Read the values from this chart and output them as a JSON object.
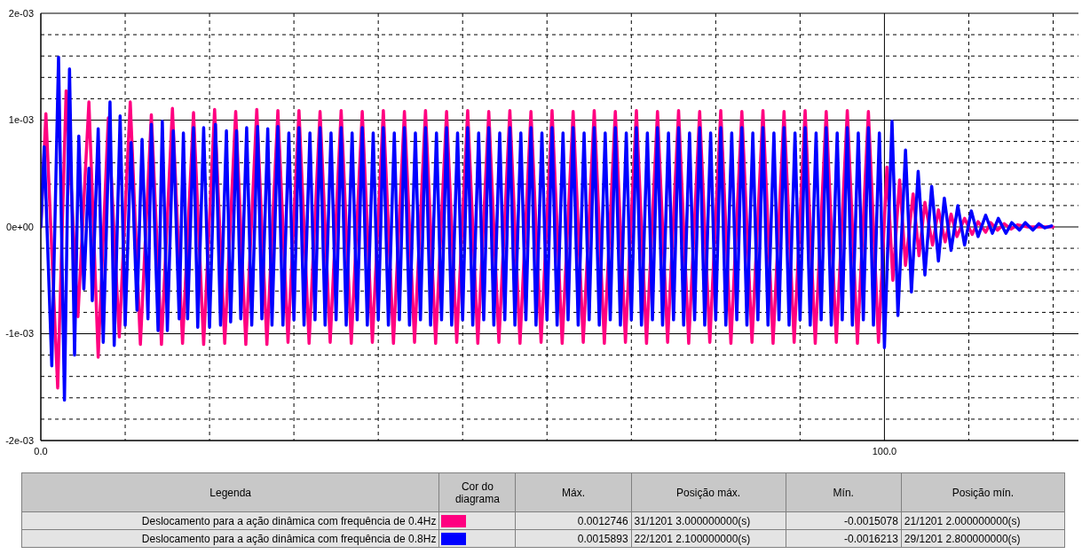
{
  "chart_data": {
    "type": "line",
    "xlim": [
      0,
      123
    ],
    "xticks": [
      {
        "value": 0,
        "label": "0.0"
      },
      {
        "value": 10,
        "label": null
      },
      {
        "value": 20,
        "label": null
      },
      {
        "value": 30,
        "label": null
      },
      {
        "value": 40,
        "label": null
      },
      {
        "value": 50,
        "label": null
      },
      {
        "value": 60,
        "label": null
      },
      {
        "value": 70,
        "label": null
      },
      {
        "value": 80,
        "label": null
      },
      {
        "value": 90,
        "label": null
      },
      {
        "value": 100,
        "label": "100.0"
      },
      {
        "value": 110,
        "label": null
      },
      {
        "value": 120,
        "label": null
      }
    ],
    "ylim": [
      -0.002,
      0.002
    ],
    "yticks": [
      {
        "value": -0.002,
        "label": "-2e-03"
      },
      {
        "value": -0.0018,
        "label": null
      },
      {
        "value": -0.0016,
        "label": null
      },
      {
        "value": -0.0014,
        "label": null
      },
      {
        "value": -0.0012,
        "label": null
      },
      {
        "value": -0.001,
        "label": "-1e-03"
      },
      {
        "value": -0.0008,
        "label": null
      },
      {
        "value": -0.0006,
        "label": null
      },
      {
        "value": -0.0004,
        "label": null
      },
      {
        "value": -0.0002,
        "label": null
      },
      {
        "value": 0,
        "label": "0e+00"
      },
      {
        "value": 0.0002,
        "label": null
      },
      {
        "value": 0.0004,
        "label": null
      },
      {
        "value": 0.0006,
        "label": null
      },
      {
        "value": 0.0008,
        "label": null
      },
      {
        "value": 0.001,
        "label": "1e-03"
      },
      {
        "value": 0.0012,
        "label": null
      },
      {
        "value": 0.0014,
        "label": null
      },
      {
        "value": 0.0016,
        "label": null
      },
      {
        "value": 0.0018,
        "label": null
      },
      {
        "value": 0.002,
        "label": "2e-03"
      }
    ],
    "grid": true,
    "legend": "bottom",
    "line_style": "solid",
    "annotations": [
      "Legenda",
      "Cor do diagrama",
      "Máx.",
      "Posição máx.",
      "Mín.",
      "Posição mín.",
      "0.0012746",
      "31/1201 3.000000000(s)",
      "-0.0015078",
      "21/1201 2.000000000(s)",
      "0.0015893",
      "22/1201 2.100000000(s)",
      "-0.0016213",
      "29/1201 2.800000000(s)"
    ],
    "series": [
      {
        "name": "Deslocamento para a ação dinâmica com frequência de 0.4Hz",
        "color": "#ff0080",
        "x": [
          0,
          0.6,
          2.0,
          3.0,
          4.4,
          5.7,
          6.8,
          8.0,
          9.3,
          10.6,
          11.8,
          13.1,
          14.3,
          15.6,
          16.8,
          18.1,
          19.3,
          20.6,
          21.8,
          23.1,
          24.3,
          25.6,
          26.8,
          28.1,
          29.3,
          30.6,
          31.8,
          33.1,
          34.3,
          35.6,
          36.8,
          38.1,
          39.3,
          40.6,
          41.8,
          43.1,
          44.3,
          45.6,
          46.8,
          48.1,
          49.3,
          50.6,
          51.8,
          53.1,
          54.3,
          55.6,
          56.8,
          58.1,
          59.3,
          60.6,
          61.8,
          63.1,
          64.3,
          65.6,
          66.8,
          68.1,
          69.3,
          70.6,
          71.8,
          73.1,
          74.3,
          75.6,
          76.8,
          78.1,
          79.3,
          80.6,
          81.8,
          83.1,
          84.3,
          85.6,
          86.8,
          88.1,
          89.3,
          90.6,
          91.8,
          93.1,
          94.3,
          95.6,
          96.8,
          98.1,
          99.3,
          100.3,
          101.0,
          101.8,
          102.5,
          103.4,
          104.1,
          104.8,
          105.7,
          106.4,
          107.2,
          107.9,
          108.6,
          109.5,
          110.4,
          111.1,
          112.0,
          112.6,
          113.4,
          114.2,
          115.0,
          115.8,
          117.0,
          120.0
        ],
        "values": [
          0,
          0.00106,
          -0.0015078,
          0.0012746,
          -0.00084,
          0.00117,
          -0.00122,
          0.00102,
          -0.00103,
          0.00117,
          -0.0011,
          0.00105,
          -0.0011,
          0.00111,
          -0.00109,
          0.00107,
          -0.0011,
          0.0011,
          -0.00109,
          0.00108,
          -0.0011,
          0.0011,
          -0.0011,
          0.00109,
          -0.00108,
          0.00109,
          -0.00109,
          0.00108,
          -0.00108,
          0.00109,
          -0.00109,
          0.00108,
          -0.00108,
          0.00109,
          -0.00109,
          0.00108,
          -0.00108,
          0.00109,
          -0.00109,
          0.00108,
          -0.00108,
          0.00109,
          -0.00109,
          0.00108,
          -0.00108,
          0.00109,
          -0.00109,
          0.00108,
          -0.00108,
          0.00109,
          -0.00109,
          0.00108,
          -0.00108,
          0.00109,
          -0.00109,
          0.00108,
          -0.00108,
          0.00109,
          -0.00109,
          0.00108,
          -0.00108,
          0.00109,
          -0.00109,
          0.00108,
          -0.00108,
          0.00109,
          -0.00109,
          0.00108,
          -0.00108,
          0.00109,
          -0.00109,
          0.00108,
          -0.00108,
          0.00109,
          -0.00109,
          0.00108,
          -0.00108,
          0.00109,
          -0.00109,
          0.00108,
          -0.00108,
          0.00056,
          -0.0005,
          0.00044,
          -0.00036,
          0.00031,
          -0.00027,
          0.00023,
          -0.00017,
          0.00016,
          -0.00014,
          0.00012,
          -9e-05,
          8e-05,
          -7e-05,
          5e-05,
          -5e-05,
          4e-05,
          -3e-05,
          3e-05,
          -2e-05,
          2e-05,
          0,
          0
        ]
      },
      {
        "name": "Deslocamento para a ação dinâmica com frequência de 0.8Hz",
        "color": "#0000ff",
        "x": [
          0,
          0.4,
          1.3,
          2.1,
          2.8,
          3.4,
          4.0,
          4.5,
          5.1,
          5.7,
          6.1,
          6.8,
          7.4,
          8.2,
          8.7,
          9.4,
          10.0,
          10.7,
          11.4,
          12.0,
          12.7,
          13.1,
          13.9,
          14.4,
          15.0,
          15.7,
          16.4,
          16.9,
          17.4,
          18.1,
          18.6,
          19.3,
          20.0,
          20.7,
          21.3,
          22.0,
          22.5,
          23.2,
          23.7,
          24.4,
          25.0,
          25.7,
          26.2,
          26.9,
          27.4,
          28.1,
          28.7,
          29.4,
          30.0,
          30.6,
          31.2,
          31.9,
          32.5,
          33.1,
          33.7,
          34.4,
          35.0,
          35.6,
          36.2,
          36.9,
          37.5,
          38.1,
          38.7,
          39.4,
          40.0,
          40.6,
          41.2,
          41.9,
          42.5,
          43.1,
          43.7,
          44.4,
          45.0,
          45.6,
          46.2,
          46.9,
          47.5,
          48.1,
          48.7,
          49.4,
          50.0,
          50.6,
          51.2,
          51.9,
          52.5,
          53.1,
          53.7,
          54.4,
          55.0,
          55.6,
          56.2,
          56.9,
          57.5,
          58.1,
          58.7,
          59.4,
          60.0,
          60.6,
          61.2,
          61.9,
          62.5,
          63.1,
          63.7,
          64.4,
          65.0,
          65.6,
          66.2,
          66.9,
          67.5,
          68.1,
          68.7,
          69.4,
          70.0,
          70.6,
          71.2,
          71.9,
          72.5,
          73.1,
          73.7,
          74.4,
          75.0,
          75.6,
          76.2,
          76.9,
          77.5,
          78.1,
          78.7,
          79.4,
          80.0,
          80.6,
          81.2,
          81.9,
          82.5,
          83.1,
          83.7,
          84.4,
          85.0,
          85.6,
          86.2,
          86.9,
          87.5,
          88.1,
          88.7,
          89.4,
          90.0,
          90.6,
          91.2,
          91.9,
          92.5,
          93.1,
          93.7,
          94.4,
          95.0,
          95.6,
          96.2,
          96.9,
          97.5,
          98.1,
          98.7,
          99.4,
          100.0,
          100.9,
          101.6,
          102.5,
          103.2,
          104.0,
          104.8,
          105.6,
          106.4,
          107.1,
          107.9,
          108.7,
          109.5,
          110.3,
          111.1,
          112.0,
          112.8,
          113.5,
          114.4,
          115.1,
          116.0,
          116.7,
          117.6,
          118.3,
          119.0,
          119.8
        ],
        "values": [
          0,
          0.00075,
          -0.0013,
          0.0015893,
          -0.0016213,
          0.00148,
          -0.0012,
          0.00085,
          -0.00058,
          0.00055,
          -0.00069,
          0.00092,
          -0.00108,
          0.00117,
          -0.00111,
          0.00104,
          -0.00092,
          0.00079,
          -0.00078,
          0.00082,
          -0.00086,
          0.00096,
          -0.00097,
          0.00099,
          -0.00097,
          0.0009,
          -0.00086,
          0.00088,
          -0.00086,
          0.00093,
          -0.00094,
          0.00093,
          -0.00094,
          0.00096,
          -0.00092,
          0.0009,
          -0.00089,
          0.0009,
          -0.00086,
          0.00093,
          -0.00092,
          0.00094,
          -0.00086,
          0.00092,
          -0.00092,
          0.00094,
          -0.00092,
          0.00088,
          -0.00087,
          0.00093,
          -0.00092,
          0.00088,
          -0.00087,
          0.00093,
          -0.00092,
          0.00088,
          -0.00087,
          0.00093,
          -0.00092,
          0.00088,
          -0.00087,
          0.00093,
          -0.00092,
          0.00088,
          -0.00087,
          0.00093,
          -0.00092,
          0.00088,
          -0.00087,
          0.00093,
          -0.00092,
          0.00088,
          -0.00087,
          0.00093,
          -0.00092,
          0.00088,
          -0.00087,
          0.00093,
          -0.00092,
          0.00088,
          -0.00087,
          0.00093,
          -0.00092,
          0.00088,
          -0.00087,
          0.00093,
          -0.00092,
          0.00088,
          -0.00087,
          0.00093,
          -0.00092,
          0.00088,
          -0.00087,
          0.00093,
          -0.00092,
          0.00088,
          -0.00087,
          0.00093,
          -0.00092,
          0.00088,
          -0.00087,
          0.00093,
          -0.00092,
          0.00088,
          -0.00087,
          0.00093,
          -0.00092,
          0.00088,
          -0.00087,
          0.00093,
          -0.00092,
          0.00088,
          -0.00087,
          0.00093,
          -0.00092,
          0.00088,
          -0.00087,
          0.00093,
          -0.00092,
          0.00088,
          -0.00087,
          0.00093,
          -0.00092,
          0.00088,
          -0.00087,
          0.00093,
          -0.00092,
          0.00088,
          -0.00087,
          0.00093,
          -0.00092,
          0.00088,
          -0.00087,
          0.00093,
          -0.00092,
          0.00088,
          -0.00087,
          0.00093,
          -0.00092,
          0.00088,
          -0.00087,
          0.00093,
          -0.00092,
          0.00088,
          -0.00087,
          0.00093,
          -0.00092,
          0.00088,
          -0.00087,
          0.00093,
          -0.00092,
          0.00088,
          -0.00087,
          0.00093,
          -0.00092,
          0.00088,
          -0.00087,
          0.00093,
          -0.00092,
          0.00088,
          -0.00113,
          0.00099,
          -0.00083,
          0.00072,
          -0.00061,
          0.00052,
          -0.00045,
          0.00038,
          -0.00032,
          0.00027,
          -0.00022,
          0.0002,
          -0.00017,
          0.00015,
          -9e-05,
          0.00011,
          -6e-05,
          8e-05,
          -6e-05,
          4e-05,
          -3e-05,
          4e-05,
          -3e-05,
          3e-05,
          -1e-05,
          1e-05
        ]
      }
    ]
  }
}
